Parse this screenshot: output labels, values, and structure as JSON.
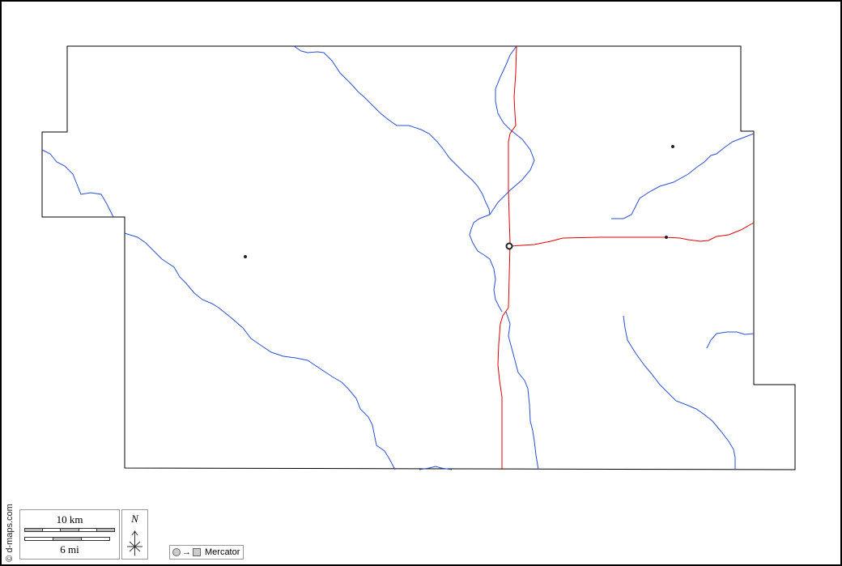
{
  "credit": "© d-maps.com",
  "scale": {
    "km_label": "10 km",
    "mi_label": "6 mi"
  },
  "north_arrow": {
    "label": "N"
  },
  "projection": {
    "arrow": "→",
    "label": "Mercator"
  },
  "colors": {
    "border": "#000000",
    "rivers": "#2a4fd0",
    "roads": "#e00000",
    "places": "#222222"
  },
  "layers": [
    "county-boundary",
    "rivers",
    "roads",
    "places"
  ]
}
